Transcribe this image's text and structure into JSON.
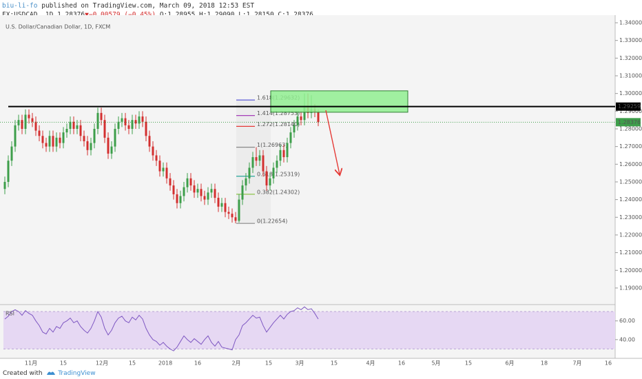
{
  "header": {
    "author": "biu-li-fo",
    "published": "published on TradingView.com, March 09, 2018 12:53 EST",
    "symbol": "FX:USDCAD, 1D 1.28376",
    "arrow": "▼",
    "change": "−0.00579 (−0.45%)",
    "ohlc": "O:1.28955 H:1.29090 L:1.28150 C:1.28376"
  },
  "chart_data": [
    {
      "type": "candlestick",
      "title": "U.S. Dollar/Canadian Dollar, 1D, FXCM",
      "up_color": "#3d9e4a",
      "down_color": "#d32f2f",
      "open": [
        1.246,
        1.25,
        1.262,
        1.27,
        1.282,
        1.285,
        1.28,
        1.288,
        1.286,
        1.284,
        1.279,
        1.276,
        1.272,
        1.27,
        1.276,
        1.27,
        1.275,
        1.272,
        1.278,
        1.28,
        1.284,
        1.28,
        1.282,
        1.276,
        1.273,
        1.268,
        1.272,
        1.28,
        1.289,
        1.285,
        1.275,
        1.266,
        1.27,
        1.28,
        1.284,
        1.286,
        1.282,
        1.28,
        1.285,
        1.283,
        1.287,
        1.284,
        1.276,
        1.27,
        1.265,
        1.262,
        1.256,
        1.258,
        1.252,
        1.248,
        1.243,
        1.238,
        1.242,
        1.247,
        1.252,
        1.248,
        1.244,
        1.246,
        1.242,
        1.24,
        1.244,
        1.246,
        1.241,
        1.236,
        1.238,
        1.233,
        1.232,
        1.23,
        1.228,
        1.24,
        1.248,
        1.252,
        1.258,
        1.264,
        1.262,
        1.265,
        1.256,
        1.248,
        1.252,
        1.258,
        1.262,
        1.268,
        1.264,
        1.272,
        1.278,
        1.282,
        1.287,
        1.285,
        1.292,
        1.289,
        1.291,
        1.28955
      ],
      "high": [
        1.253,
        1.265,
        1.273,
        1.285,
        1.288,
        1.288,
        1.291,
        1.291,
        1.289,
        1.287,
        1.282,
        1.279,
        1.275,
        1.279,
        1.279,
        1.278,
        1.278,
        1.281,
        1.283,
        1.287,
        1.287,
        1.285,
        1.285,
        1.279,
        1.276,
        1.275,
        1.283,
        1.292,
        1.292,
        1.288,
        1.278,
        1.273,
        1.283,
        1.287,
        1.289,
        1.289,
        1.285,
        1.288,
        1.288,
        1.29,
        1.29,
        1.287,
        1.279,
        1.273,
        1.268,
        1.265,
        1.261,
        1.261,
        1.255,
        1.251,
        1.246,
        1.245,
        1.25,
        1.255,
        1.255,
        1.251,
        1.249,
        1.249,
        1.245,
        1.247,
        1.249,
        1.249,
        1.244,
        1.241,
        1.241,
        1.236,
        1.235,
        1.233,
        1.243,
        1.251,
        1.255,
        1.261,
        1.267,
        1.2696,
        1.268,
        1.268,
        1.259,
        1.255,
        1.261,
        1.265,
        1.271,
        1.271,
        1.275,
        1.281,
        1.285,
        1.29,
        1.29,
        1.3,
        1.3,
        1.299,
        1.294,
        1.2909
      ],
      "low": [
        1.243,
        1.247,
        1.259,
        1.267,
        1.279,
        1.277,
        1.277,
        1.283,
        1.281,
        1.276,
        1.273,
        1.269,
        1.267,
        1.267,
        1.267,
        1.267,
        1.269,
        1.269,
        1.275,
        1.277,
        1.277,
        1.277,
        1.273,
        1.27,
        1.265,
        1.265,
        1.269,
        1.277,
        1.282,
        1.272,
        1.263,
        1.263,
        1.267,
        1.277,
        1.281,
        1.279,
        1.277,
        1.277,
        1.28,
        1.28,
        1.281,
        1.273,
        1.267,
        1.262,
        1.259,
        1.253,
        1.253,
        1.249,
        1.245,
        1.24,
        1.235,
        1.235,
        1.239,
        1.244,
        1.245,
        1.241,
        1.241,
        1.239,
        1.237,
        1.237,
        1.241,
        1.238,
        1.233,
        1.233,
        1.23,
        1.229,
        1.227,
        1.22654,
        1.227,
        1.237,
        1.245,
        1.249,
        1.255,
        1.259,
        1.259,
        1.253,
        1.245,
        1.245,
        1.249,
        1.255,
        1.259,
        1.261,
        1.261,
        1.269,
        1.275,
        1.279,
        1.282,
        1.282,
        1.286,
        1.286,
        1.2866,
        1.2815
      ],
      "close": [
        1.25,
        1.262,
        1.27,
        1.282,
        1.285,
        1.28,
        1.288,
        1.286,
        1.284,
        1.279,
        1.276,
        1.272,
        1.27,
        1.276,
        1.27,
        1.275,
        1.272,
        1.278,
        1.28,
        1.284,
        1.28,
        1.282,
        1.276,
        1.273,
        1.268,
        1.272,
        1.28,
        1.289,
        1.285,
        1.275,
        1.266,
        1.27,
        1.28,
        1.284,
        1.286,
        1.282,
        1.28,
        1.285,
        1.283,
        1.287,
        1.284,
        1.276,
        1.27,
        1.265,
        1.262,
        1.256,
        1.258,
        1.252,
        1.248,
        1.243,
        1.238,
        1.242,
        1.247,
        1.252,
        1.248,
        1.244,
        1.246,
        1.242,
        1.24,
        1.244,
        1.246,
        1.241,
        1.236,
        1.238,
        1.233,
        1.232,
        1.23,
        1.228,
        1.24,
        1.248,
        1.252,
        1.258,
        1.264,
        1.262,
        1.265,
        1.256,
        1.248,
        1.252,
        1.258,
        1.262,
        1.268,
        1.264,
        1.272,
        1.278,
        1.282,
        1.287,
        1.285,
        1.292,
        1.289,
        1.291,
        1.28955,
        1.28376
      ],
      "ylim": [
        1.1814,
        1.3443
      ],
      "yticks": [
        {
          "value": 1.19,
          "label": "1.19000"
        },
        {
          "value": 1.2,
          "label": "1.20000"
        },
        {
          "value": 1.21,
          "label": "1.21000"
        },
        {
          "value": 1.22,
          "label": "1.22000"
        },
        {
          "value": 1.23,
          "label": "1.23000"
        },
        {
          "value": 1.24,
          "label": "1.24000"
        },
        {
          "value": 1.25,
          "label": "1.25000"
        },
        {
          "value": 1.26,
          "label": "1.26000"
        },
        {
          "value": 1.27,
          "label": "1.27000"
        },
        {
          "value": 1.28,
          "label": "1.28000"
        },
        {
          "value": 1.29,
          "label": "1.29000"
        },
        {
          "value": 1.3,
          "label": "1.30000"
        },
        {
          "value": 1.31,
          "label": "1.31000"
        },
        {
          "value": 1.32,
          "label": "1.32000"
        },
        {
          "value": 1.33,
          "label": "1.33000"
        },
        {
          "value": 1.34,
          "label": "1.34000"
        }
      ],
      "grid": false,
      "xtick_labels": [
        "11月",
        "15",
        "12月",
        "15",
        "2018",
        "16",
        "2月",
        "15",
        "3月",
        "15",
        "4月",
        "16",
        "5月",
        "15",
        "6月",
        "18",
        "7月",
        "16"
      ],
      "hline": {
        "value": 1.29259,
        "label": "1.29259",
        "color": "#000000"
      },
      "last_price": {
        "value": 1.28376,
        "label": "1.28376",
        "color": "#3d9e4a"
      },
      "zone": {
        "values": [
          1.2894,
          1.3015
        ],
        "color": "#90ee90"
      },
      "fib": [
        {
          "value": 1.29632,
          "label": "1.618(1.29632)",
          "color": "#5b5bd6"
        },
        {
          "value": 1.28753,
          "label": "1.414(1.28753)",
          "color": "#9c27b0"
        },
        {
          "value": 1.2814,
          "label": "1.272(1.28140)",
          "color": "#e53935"
        },
        {
          "value": 1.26963,
          "label": "1(1.26963)",
          "color": "#888888"
        },
        {
          "value": 1.25319,
          "label": "0.618(1.25319)",
          "color": "#26a69a"
        },
        {
          "value": 1.24302,
          "label": "0.382(1.24302)",
          "color": "#8bc34a"
        },
        {
          "value": 1.22654,
          "label": "0(1.22654)",
          "color": "#888888"
        }
      ]
    },
    {
      "type": "line",
      "name": "RSI",
      "color": "#7e57c2",
      "band_color": "#e6d8f3",
      "values": [
        62,
        65,
        70,
        72,
        70,
        66,
        71,
        68,
        66,
        60,
        55,
        48,
        46,
        52,
        48,
        54,
        52,
        58,
        60,
        63,
        58,
        60,
        54,
        50,
        47,
        52,
        60,
        70,
        64,
        52,
        45,
        50,
        58,
        63,
        65,
        60,
        58,
        64,
        61,
        66,
        62,
        52,
        45,
        40,
        38,
        34,
        37,
        33,
        30,
        28,
        32,
        38,
        44,
        40,
        37,
        41,
        38,
        35,
        40,
        44,
        37,
        33,
        38,
        32,
        31,
        30,
        29,
        40,
        45,
        55,
        58,
        62,
        66,
        63,
        64,
        55,
        48,
        53,
        58,
        62,
        66,
        62,
        67,
        70,
        71,
        74,
        72,
        75,
        72,
        73,
        68,
        62
      ],
      "ylim": [
        20,
        76.7
      ],
      "yticks": [
        {
          "value": 40,
          "label": "40.00"
        },
        {
          "value": 60,
          "label": "60.00"
        }
      ],
      "bands": [
        30,
        70
      ]
    }
  ],
  "footer": {
    "created": "Created with",
    "brand": "TradingView"
  }
}
